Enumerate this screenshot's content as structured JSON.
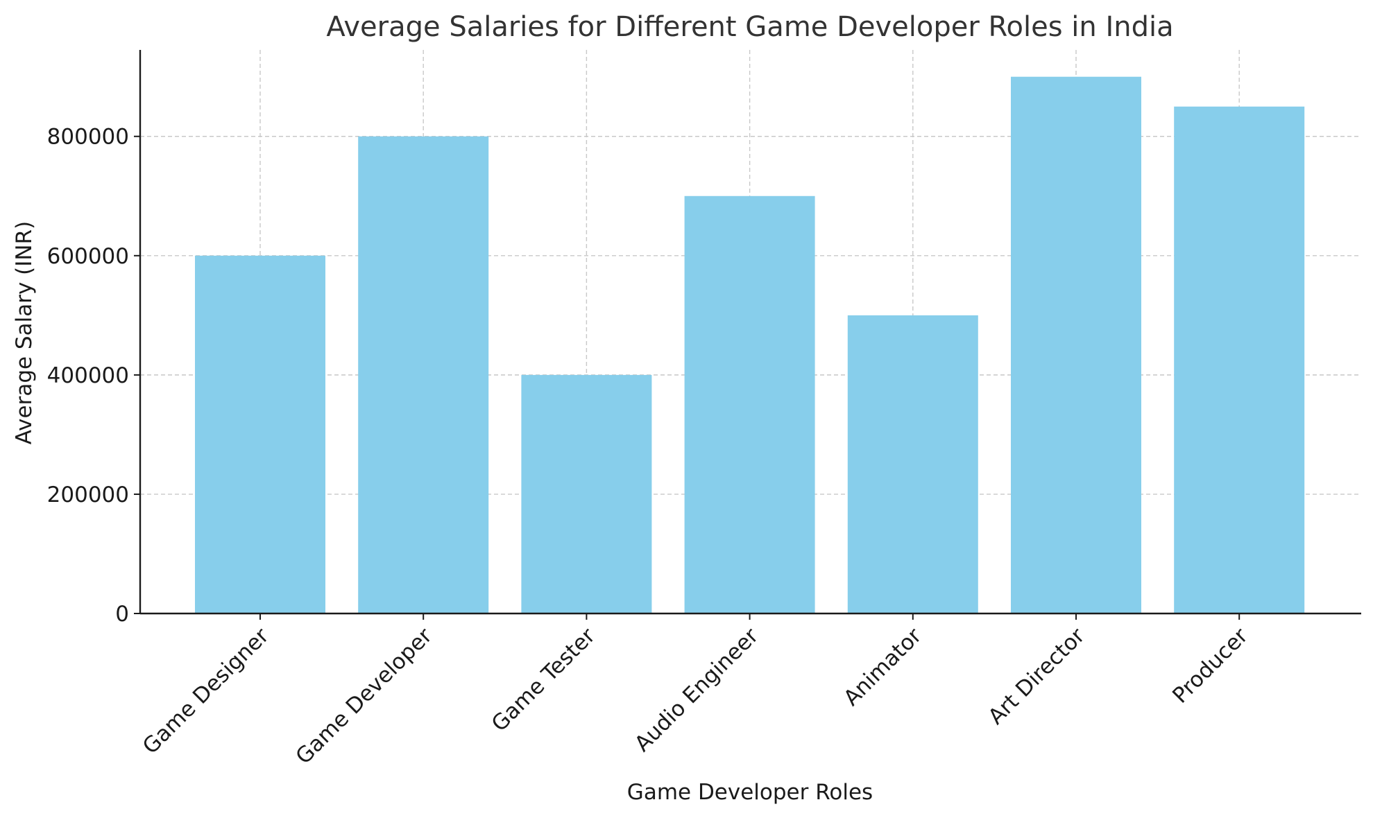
{
  "chart_data": {
    "type": "bar",
    "title": "Average Salaries for Different Game Developer Roles in India",
    "xlabel": "Game Developer Roles",
    "ylabel": "Average Salary (INR)",
    "categories": [
      "Game Designer",
      "Game Developer",
      "Game Tester",
      "Audio Engineer",
      "Animator",
      "Art Director",
      "Producer"
    ],
    "values": [
      600000,
      800000,
      400000,
      700000,
      500000,
      900000,
      850000
    ],
    "yticks": [
      0,
      200000,
      400000,
      600000,
      800000
    ],
    "ylim": [
      0,
      945000
    ],
    "grid": true,
    "bar_color": "#87CEEB",
    "axis_color": "#1a1a1a",
    "grid_color": "#c8c8c8",
    "title_color": "#333333",
    "x_tick_rotation_deg": 45
  }
}
